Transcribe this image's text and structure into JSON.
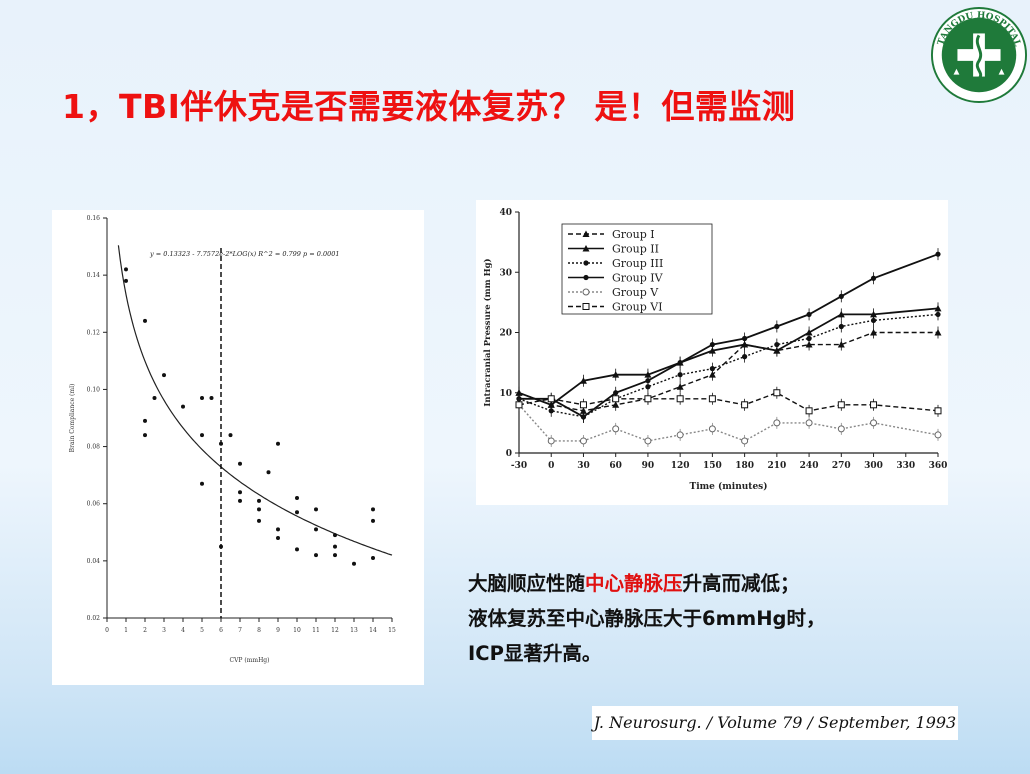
{
  "slide": {
    "title": "1，TBI伴休克是否需要液体复苏？   是！但需监测",
    "logo_text": "TANGDU HOSPITAL",
    "caption_line1_pre": "大脑顺应性随",
    "caption_line1_highlight": "中心静脉压",
    "caption_line1_post": "升高而减低；",
    "caption_line2": "液体复苏至中心静脉压大于6mmHg时，",
    "caption_line3": "ICP显著升高。",
    "citation": "J. Neurosurg. / Volume 79 / September, 1993",
    "colors": {
      "title": "#ee1111",
      "highlight": "#e01010",
      "logo_green": "#1f7a3a"
    }
  },
  "chart_data": [
    {
      "type": "scatter",
      "equation": "y = 0.13323 - 7.7572e-2*LOG(x)   R^2 = 0.799   p = 0.0001",
      "xlabel": "CVP (mmHg)",
      "ylabel": "Brain Compliance (ml)",
      "xlim": [
        0,
        15
      ],
      "ylim": [
        0.02,
        0.16
      ],
      "x_ticks": [
        0,
        1,
        2,
        3,
        4,
        5,
        6,
        7,
        8,
        9,
        10,
        11,
        12,
        13,
        14,
        15
      ],
      "y_ticks": [
        0.02,
        0.04,
        0.06,
        0.08,
        0.1,
        0.12,
        0.14,
        0.16
      ],
      "fit": {
        "a": 0.13323,
        "b": 0.077572,
        "log": "log10"
      },
      "reference_line_x": 6,
      "points": [
        [
          1,
          0.142
        ],
        [
          1,
          0.138
        ],
        [
          2,
          0.124
        ],
        [
          2,
          0.089
        ],
        [
          2,
          0.084
        ],
        [
          2.5,
          0.097
        ],
        [
          3,
          0.105
        ],
        [
          4,
          0.094
        ],
        [
          5,
          0.097
        ],
        [
          5,
          0.084
        ],
        [
          5,
          0.067
        ],
        [
          5.5,
          0.097
        ],
        [
          6,
          0.081
        ],
        [
          6,
          0.045
        ],
        [
          6.5,
          0.084
        ],
        [
          7,
          0.074
        ],
        [
          7,
          0.064
        ],
        [
          7,
          0.061
        ],
        [
          8,
          0.061
        ],
        [
          8,
          0.058
        ],
        [
          8,
          0.054
        ],
        [
          8.5,
          0.071
        ],
        [
          9,
          0.081
        ],
        [
          9,
          0.051
        ],
        [
          9,
          0.048
        ],
        [
          10,
          0.062
        ],
        [
          10,
          0.057
        ],
        [
          10,
          0.044
        ],
        [
          11,
          0.058
        ],
        [
          11,
          0.051
        ],
        [
          11,
          0.042
        ],
        [
          12,
          0.049
        ],
        [
          12,
          0.045
        ],
        [
          12,
          0.042
        ],
        [
          13,
          0.039
        ],
        [
          14,
          0.058
        ],
        [
          14,
          0.054
        ],
        [
          14,
          0.041
        ]
      ]
    },
    {
      "type": "line",
      "xlabel": "Time (minutes)",
      "ylabel": "Intracranial Pressure (mm Hg)",
      "xlim": [
        -30,
        360
      ],
      "ylim": [
        0,
        40
      ],
      "x": [
        -30,
        0,
        30,
        60,
        90,
        120,
        150,
        180,
        210,
        240,
        270,
        300,
        330,
        360
      ],
      "y_ticks": [
        0,
        10,
        20,
        30,
        40
      ],
      "series": [
        {
          "name": "Group I",
          "style": "dashed",
          "marker": "triangle",
          "points": [
            [
              -30,
              10
            ],
            [
              0,
              8
            ],
            [
              30,
              7
            ],
            [
              60,
              8
            ],
            [
              90,
              9
            ],
            [
              120,
              11
            ],
            [
              150,
              13
            ],
            [
              180,
              18
            ],
            [
              210,
              17
            ],
            [
              240,
              18
            ],
            [
              270,
              18
            ],
            [
              300,
              20
            ],
            [
              360,
              20
            ]
          ]
        },
        {
          "name": "Group II",
          "style": "solid",
          "marker": "triangle",
          "points": [
            [
              -30,
              10
            ],
            [
              0,
              8
            ],
            [
              30,
              12
            ],
            [
              60,
              13
            ],
            [
              90,
              13
            ],
            [
              120,
              15
            ],
            [
              150,
              17
            ],
            [
              180,
              18
            ],
            [
              210,
              17
            ],
            [
              240,
              20
            ],
            [
              270,
              23
            ],
            [
              300,
              23
            ],
            [
              360,
              24
            ]
          ]
        },
        {
          "name": "Group III",
          "style": "dotted",
          "marker": "dot",
          "points": [
            [
              -30,
              9
            ],
            [
              0,
              7
            ],
            [
              30,
              6
            ],
            [
              60,
              9
            ],
            [
              90,
              11
            ],
            [
              120,
              13
            ],
            [
              150,
              14
            ],
            [
              180,
              16
            ],
            [
              210,
              18
            ],
            [
              240,
              19
            ],
            [
              270,
              21
            ],
            [
              300,
              22
            ],
            [
              360,
              23
            ]
          ]
        },
        {
          "name": "Group IV",
          "style": "solid",
          "marker": "dot",
          "points": [
            [
              -30,
              9
            ],
            [
              0,
              9
            ],
            [
              30,
              6
            ],
            [
              60,
              10
            ],
            [
              90,
              12
            ],
            [
              120,
              15
            ],
            [
              150,
              18
            ],
            [
              180,
              19
            ],
            [
              210,
              21
            ],
            [
              240,
              23
            ],
            [
              270,
              26
            ],
            [
              300,
              29
            ],
            [
              360,
              33
            ]
          ]
        },
        {
          "name": "Group V",
          "style": "dotted",
          "marker": "open-circle",
          "points": [
            [
              -30,
              8
            ],
            [
              0,
              2
            ],
            [
              30,
              2
            ],
            [
              60,
              4
            ],
            [
              90,
              2
            ],
            [
              120,
              3
            ],
            [
              150,
              4
            ],
            [
              180,
              2
            ],
            [
              210,
              5
            ],
            [
              240,
              5
            ],
            [
              270,
              4
            ],
            [
              300,
              5
            ],
            [
              360,
              3
            ]
          ]
        },
        {
          "name": "Group VI",
          "style": "dashed",
          "marker": "open-square",
          "points": [
            [
              -30,
              8
            ],
            [
              0,
              9
            ],
            [
              30,
              8
            ],
            [
              60,
              9
            ],
            [
              90,
              9
            ],
            [
              120,
              9
            ],
            [
              150,
              9
            ],
            [
              180,
              8
            ],
            [
              210,
              10
            ],
            [
              240,
              7
            ],
            [
              270,
              8
            ],
            [
              300,
              8
            ],
            [
              360,
              7
            ]
          ]
        }
      ]
    }
  ]
}
